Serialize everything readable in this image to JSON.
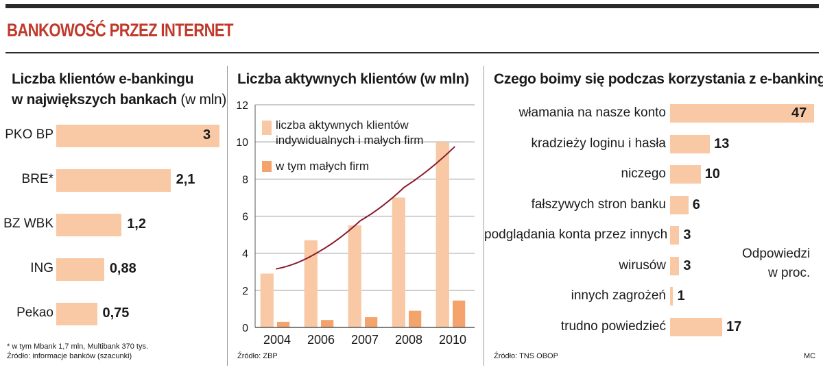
{
  "header": {
    "title": "BANKOWOŚĆ PRZEZ INTERNET"
  },
  "colors": {
    "bar": "#f8c9a4",
    "bar_dark": "#f3a36b",
    "trend_line": "#8b1a2b",
    "title": "#c0392b"
  },
  "panel1": {
    "title_line1": "Liczba klientów e-bankingu",
    "title_line2": "w największych bankach",
    "title_unit": "(w mln)",
    "footnote1": "* w tym Mbank 1,7 mln, Multibank 370 tys.",
    "footnote2": "Źródło: informacje banków (szacunki)"
  },
  "panel2": {
    "title": "Liczba aktywnych klientów (w mln)",
    "source": "Źródło: ZBP"
  },
  "panel3": {
    "title": "Czego boimy się podczas korzystania z e-bankingu",
    "note_line1": "Odpowiedzi",
    "note_line2": "w proc.",
    "source": "Źródło: TNS OBOP",
    "credit": "MC"
  },
  "chart_data": [
    {
      "type": "bar",
      "orientation": "horizontal",
      "title": "Liczba klientów e-bankingu w największych bankach (w mln)",
      "categories": [
        "PKO BP",
        "BRE*",
        "BZ WBK",
        "ING",
        "Pekao"
      ],
      "values": [
        3,
        2.1,
        1.2,
        0.88,
        0.75
      ],
      "value_labels": [
        "3",
        "2,1",
        "1,2",
        "0,88",
        "0,75"
      ],
      "xlim": [
        0,
        3
      ]
    },
    {
      "type": "bar",
      "title": "Liczba aktywnych klientów (w mln)",
      "categories": [
        "2004",
        "2006",
        "2007",
        "2008",
        "2010"
      ],
      "series": [
        {
          "name": "liczba aktywnych klientów indywidualnych i małych firm",
          "values": [
            2.9,
            4.7,
            5.5,
            7.0,
            10.0
          ]
        },
        {
          "name": "w tym małych firm",
          "values": [
            0.3,
            0.4,
            0.55,
            0.9,
            1.45
          ]
        }
      ],
      "trend_line": [
        3.15,
        4.0,
        5.75,
        7.55,
        9.75
      ],
      "legend": [
        "liczba aktywnych klientów",
        "indywidualnych i małych firm",
        "w tym małych firm"
      ],
      "ylim": [
        0,
        12
      ],
      "yticks": [
        "0",
        "2",
        "4",
        "6",
        "8",
        "10",
        "12"
      ],
      "grid": true
    },
    {
      "type": "bar",
      "orientation": "horizontal",
      "title": "Czego boimy się podczas korzystania z e-bankingu",
      "categories": [
        "włamania na nasze konto",
        "kradzieży loginu i hasła",
        "niczego",
        "fałszywych stron banku",
        "podglądania konta przez innych",
        "wirusów",
        "innych zagrożeń",
        "trudno powiedzieć"
      ],
      "values": [
        47,
        13,
        10,
        6,
        3,
        3,
        1,
        17
      ],
      "value_labels": [
        "47",
        "13",
        "10",
        "6",
        "3",
        "3",
        "1",
        "17"
      ],
      "xlim": [
        0,
        47
      ]
    }
  ]
}
